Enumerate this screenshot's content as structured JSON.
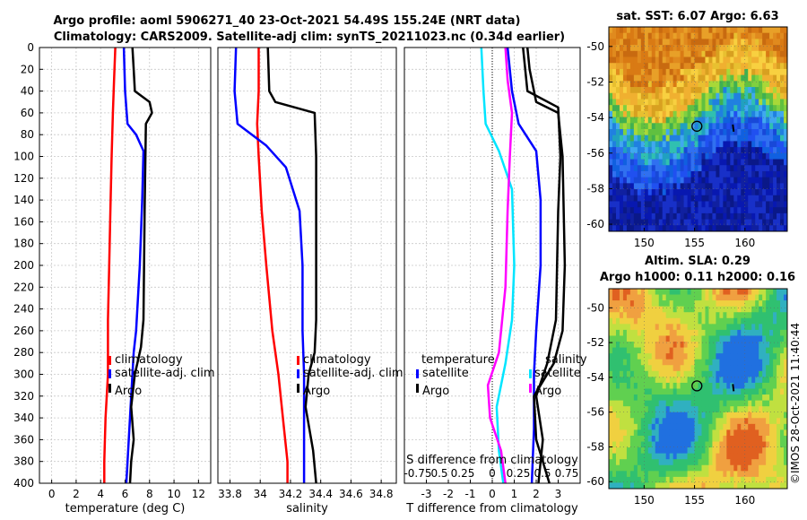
{
  "header": {
    "title_line1": "Argo profile: aoml 5906271_40 23-Oct-2021 54.49S 155.24E (NRT data)",
    "title_line2": "Climatology: CARS2009. Satellite-adj clim: synTS_20211023.nc (0.34d earlier)"
  },
  "colors": {
    "climatology": "#ff0000",
    "satellite": "#0000ff",
    "argo": "#000000",
    "satellite_salinity": "#00e5ff",
    "argo_salinity": "#ff00ff",
    "grid": "#c8c8c8"
  },
  "chart_data": [
    {
      "type": "line",
      "id": "temperature",
      "xlabel": "temperature (deg C)",
      "ylabel": "",
      "xlim": [
        -1,
        13
      ],
      "ylim": [
        400,
        0
      ],
      "xticks": [
        "0",
        "2",
        "4",
        "6",
        "8",
        "10",
        "12"
      ],
      "xtick_values": [
        0,
        2,
        4,
        6,
        8,
        10,
        12
      ],
      "yticks": [
        "0",
        "20",
        "40",
        "60",
        "80",
        "100",
        "120",
        "140",
        "160",
        "180",
        "200",
        "220",
        "240",
        "260",
        "280",
        "300",
        "320",
        "340",
        "360",
        "380",
        "400"
      ],
      "ytick_values": [
        0,
        20,
        40,
        60,
        80,
        100,
        120,
        140,
        160,
        180,
        200,
        220,
        240,
        260,
        280,
        300,
        320,
        340,
        360,
        380,
        400
      ],
      "legend": [
        "climatology",
        "satellite-adj. clim",
        "Argo"
      ],
      "series": [
        {
          "name": "climatology",
          "color": "#ff0000",
          "points": [
            [
              5.2,
              0
            ],
            [
              5.1,
              30
            ],
            [
              5.0,
              60
            ],
            [
              4.9,
              100
            ],
            [
              4.8,
              150
            ],
            [
              4.7,
              200
            ],
            [
              4.6,
              250
            ],
            [
              4.6,
              300
            ],
            [
              4.4,
              340
            ],
            [
              4.3,
              380
            ],
            [
              4.3,
              400
            ]
          ]
        },
        {
          "name": "satellite-adj. clim",
          "color": "#0000ff",
          "points": [
            [
              5.9,
              0
            ],
            [
              6.0,
              40
            ],
            [
              6.2,
              70
            ],
            [
              6.9,
              80
            ],
            [
              7.5,
              95
            ],
            [
              7.4,
              140
            ],
            [
              7.2,
              200
            ],
            [
              6.9,
              260
            ],
            [
              6.7,
              280
            ],
            [
              6.5,
              320
            ],
            [
              6.3,
              360
            ],
            [
              6.1,
              400
            ]
          ]
        },
        {
          "name": "Argo",
          "color": "#000000",
          "points": [
            [
              6.6,
              0
            ],
            [
              6.7,
              20
            ],
            [
              6.8,
              40
            ],
            [
              8.0,
              50
            ],
            [
              8.2,
              60
            ],
            [
              7.7,
              70
            ],
            [
              7.6,
              150
            ],
            [
              7.5,
              250
            ],
            [
              7.3,
              275
            ],
            [
              7.1,
              285
            ],
            [
              6.8,
              300
            ],
            [
              6.5,
              330
            ],
            [
              6.7,
              360
            ],
            [
              6.5,
              380
            ],
            [
              6.4,
              400
            ]
          ]
        }
      ]
    },
    {
      "type": "line",
      "id": "salinity",
      "xlabel": "salinity",
      "ylabel": "",
      "xlim": [
        33.72,
        34.9
      ],
      "ylim": [
        400,
        0
      ],
      "xticks": [
        "33.8",
        "34",
        "34.2",
        "34.4",
        "34.6",
        "34.8"
      ],
      "xtick_values": [
        33.8,
        34.0,
        34.2,
        34.4,
        34.6,
        34.8
      ],
      "legend": [
        "climatology",
        "satellite-adj. clim",
        "Argo"
      ],
      "series": [
        {
          "name": "climatology",
          "color": "#ff0000",
          "points": [
            [
              33.99,
              0
            ],
            [
              33.99,
              40
            ],
            [
              33.98,
              70
            ],
            [
              33.99,
              100
            ],
            [
              34.01,
              150
            ],
            [
              34.04,
              200
            ],
            [
              34.08,
              260
            ],
            [
              34.12,
              300
            ],
            [
              34.15,
              340
            ],
            [
              34.18,
              380
            ],
            [
              34.18,
              400
            ]
          ]
        },
        {
          "name": "satellite-adj. clim",
          "color": "#0000ff",
          "points": [
            [
              33.84,
              0
            ],
            [
              33.83,
              40
            ],
            [
              33.85,
              70
            ],
            [
              34.04,
              90
            ],
            [
              34.17,
              110
            ],
            [
              34.26,
              150
            ],
            [
              34.28,
              200
            ],
            [
              34.28,
              260
            ],
            [
              34.29,
              300
            ],
            [
              34.29,
              360
            ],
            [
              34.29,
              400
            ]
          ]
        },
        {
          "name": "Argo",
          "color": "#000000",
          "points": [
            [
              34.05,
              0
            ],
            [
              34.06,
              40
            ],
            [
              34.1,
              50
            ],
            [
              34.36,
              60
            ],
            [
              34.37,
              100
            ],
            [
              34.37,
              250
            ],
            [
              34.36,
              280
            ],
            [
              34.32,
              300
            ],
            [
              34.3,
              330
            ],
            [
              34.35,
              370
            ],
            [
              34.37,
              400
            ]
          ]
        }
      ]
    },
    {
      "type": "line",
      "id": "difference",
      "xlabel": "T difference from climatology",
      "xlabel2": "S difference from climatology",
      "xlim": [
        -4,
        4
      ],
      "ylim": [
        400,
        0
      ],
      "xticks": [
        "-3",
        "-2",
        "-1",
        "0",
        "1",
        "2",
        "3"
      ],
      "xtick_values": [
        -3,
        -2,
        -1,
        0,
        1,
        2,
        3
      ],
      "xticks2": [
        "-0.75",
        "0.5",
        "0.25",
        "0",
        "0.25",
        "0.5",
        "0.75"
      ],
      "legend_left": [
        "temperature",
        "satellite",
        "Argo"
      ],
      "legend_right": [
        "salinity",
        "satellite",
        "Argo"
      ],
      "series": [
        {
          "name": "T satellite",
          "color": "#0000ff",
          "points": [
            [
              0.7,
              0
            ],
            [
              0.9,
              40
            ],
            [
              1.2,
              70
            ],
            [
              2.0,
              95
            ],
            [
              2.2,
              140
            ],
            [
              2.2,
              200
            ],
            [
              2.0,
              260
            ],
            [
              1.9,
              300
            ],
            [
              1.9,
              350
            ],
            [
              1.8,
              400
            ]
          ]
        },
        {
          "name": "T Argo",
          "color": "#000000",
          "points": [
            [
              1.4,
              0
            ],
            [
              1.6,
              40
            ],
            [
              3.0,
              55
            ],
            [
              3.1,
              100
            ],
            [
              3.0,
              150
            ],
            [
              2.9,
              250
            ],
            [
              2.5,
              290
            ],
            [
              2.0,
              320
            ],
            [
              2.3,
              360
            ],
            [
              2.1,
              400
            ]
          ]
        },
        {
          "name": "S satellite",
          "color": "#00e5ff",
          "points": [
            [
              -0.5,
              0
            ],
            [
              -0.4,
              40
            ],
            [
              -0.3,
              70
            ],
            [
              0.3,
              95
            ],
            [
              0.9,
              130
            ],
            [
              1.0,
              200
            ],
            [
              0.9,
              250
            ],
            [
              0.6,
              290
            ],
            [
              0.2,
              330
            ],
            [
              0.3,
              370
            ],
            [
              0.5,
              400
            ]
          ]
        },
        {
          "name": "S Argo",
          "color": "#ff00ff",
          "points": [
            [
              0.6,
              0
            ],
            [
              0.7,
              30
            ],
            [
              0.9,
              60
            ],
            [
              0.8,
              100
            ],
            [
              0.7,
              150
            ],
            [
              0.6,
              220
            ],
            [
              0.3,
              280
            ],
            [
              -0.2,
              310
            ],
            [
              -0.1,
              340
            ],
            [
              0.4,
              370
            ],
            [
              0.6,
              400
            ]
          ]
        },
        {
          "name": "S Argo black",
          "color": "#000000",
          "points": [
            [
              1.6,
              0
            ],
            [
              1.7,
              20
            ],
            [
              2.0,
              50
            ],
            [
              3.0,
              60
            ],
            [
              3.2,
              100
            ],
            [
              3.3,
              200
            ],
            [
              3.2,
              260
            ],
            [
              2.8,
              290
            ],
            [
              1.9,
              320
            ],
            [
              2.0,
              360
            ],
            [
              2.6,
              400
            ]
          ]
        }
      ]
    },
    {
      "type": "heatmap",
      "id": "sst_map",
      "title": "sat. SST: 6.07 Argo: 6.63",
      "xlim": [
        146.5,
        164.2
      ],
      "ylim": [
        -60.4,
        -48.9
      ],
      "xticks": [
        "150",
        "155",
        "160"
      ],
      "xtick_values": [
        150,
        155,
        160
      ],
      "yticks": [
        "-50",
        "-52",
        "-54",
        "-56",
        "-58",
        "-60"
      ],
      "ytick_values": [
        -50,
        -52,
        -54,
        -56,
        -58,
        -60
      ],
      "argo_lon": 155.24,
      "argo_lat": -54.49
    },
    {
      "type": "heatmap",
      "id": "sla_map",
      "title": "Altim. SLA: 0.29",
      "title2": "Argo h1000: 0.11 h2000: 0.16",
      "xlim": [
        146.5,
        164.2
      ],
      "ylim": [
        -60.4,
        -48.9
      ],
      "xticks": [
        "150",
        "155",
        "160"
      ],
      "xtick_values": [
        150,
        155,
        160
      ],
      "yticks": [
        "-50",
        "-52",
        "-54",
        "-56",
        "-58",
        "-60"
      ],
      "ytick_values": [
        -50,
        -52,
        -54,
        -56,
        -58,
        -60
      ],
      "argo_lon": 155.24,
      "argo_lat": -54.49
    }
  ],
  "footer": {
    "copyright": "©IMOS 28-Oct-2021 11:40:44"
  }
}
